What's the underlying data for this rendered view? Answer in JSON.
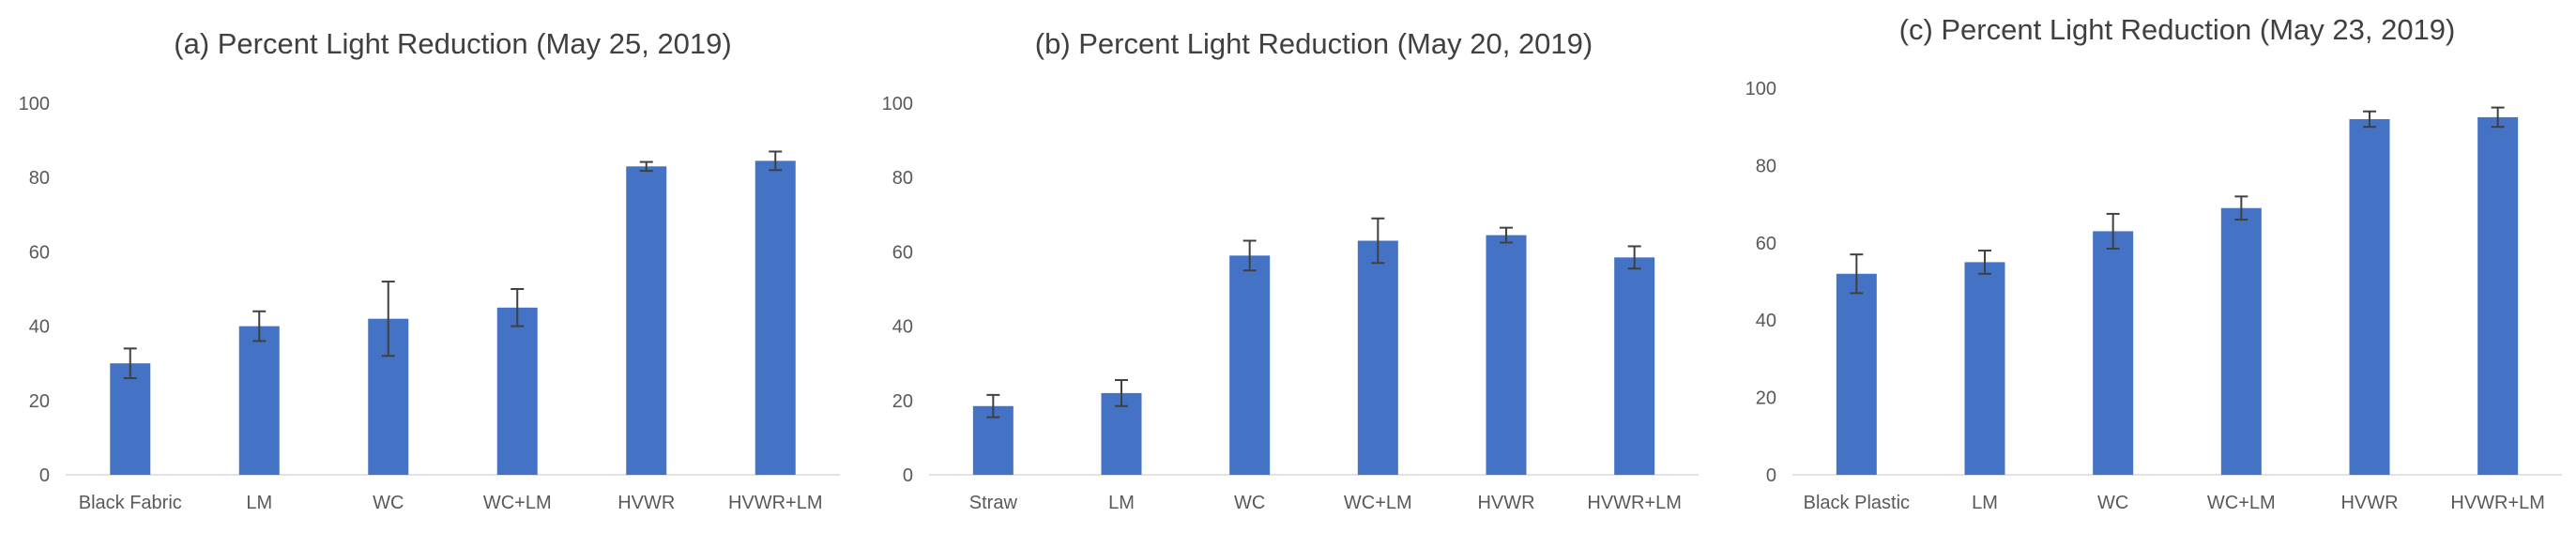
{
  "chart_data": [
    {
      "type": "bar",
      "title": "(a) Percent Light Reduction (May 25, 2019)",
      "categories": [
        "Black Fabric",
        "LM",
        "WC",
        "WC+LM",
        "HVWR",
        "HVWR+LM"
      ],
      "values": [
        30,
        40,
        42,
        45,
        83,
        84.5
      ],
      "error": [
        4,
        4,
        10,
        5,
        1.2,
        2.5
      ],
      "xlabel": "",
      "ylabel": "",
      "ylim": [
        0,
        100
      ],
      "yticks": [
        0,
        20,
        40,
        60,
        80,
        100
      ],
      "grid": false,
      "color": "#4472C4"
    },
    {
      "type": "bar",
      "title": "(b) Percent Light Reduction (May 20, 2019)",
      "categories": [
        "Straw",
        "LM",
        "WC",
        "WC+LM",
        "HVWR",
        "HVWR+LM"
      ],
      "values": [
        18.5,
        22,
        59,
        63,
        64.5,
        58.5
      ],
      "error": [
        3,
        3.5,
        4,
        6,
        2,
        3
      ],
      "xlabel": "",
      "ylabel": "",
      "ylim": [
        0,
        100
      ],
      "yticks": [
        0,
        20,
        40,
        60,
        80,
        100
      ],
      "grid": false,
      "color": "#4472C4"
    },
    {
      "type": "bar",
      "title": "(c) Percent Light Reduction (May 23, 2019)",
      "categories": [
        "Black Plastic",
        "LM",
        "WC",
        "WC+LM",
        "HVWR",
        "HVWR+LM"
      ],
      "values": [
        52,
        55,
        63,
        69,
        92,
        92.5
      ],
      "error": [
        5,
        3,
        4.5,
        3,
        2,
        2.5
      ],
      "xlabel": "",
      "ylabel": "",
      "ylim": [
        0,
        100
      ],
      "yticks": [
        0,
        20,
        40,
        60,
        80,
        100
      ],
      "grid": false,
      "color": "#4472C4"
    }
  ]
}
